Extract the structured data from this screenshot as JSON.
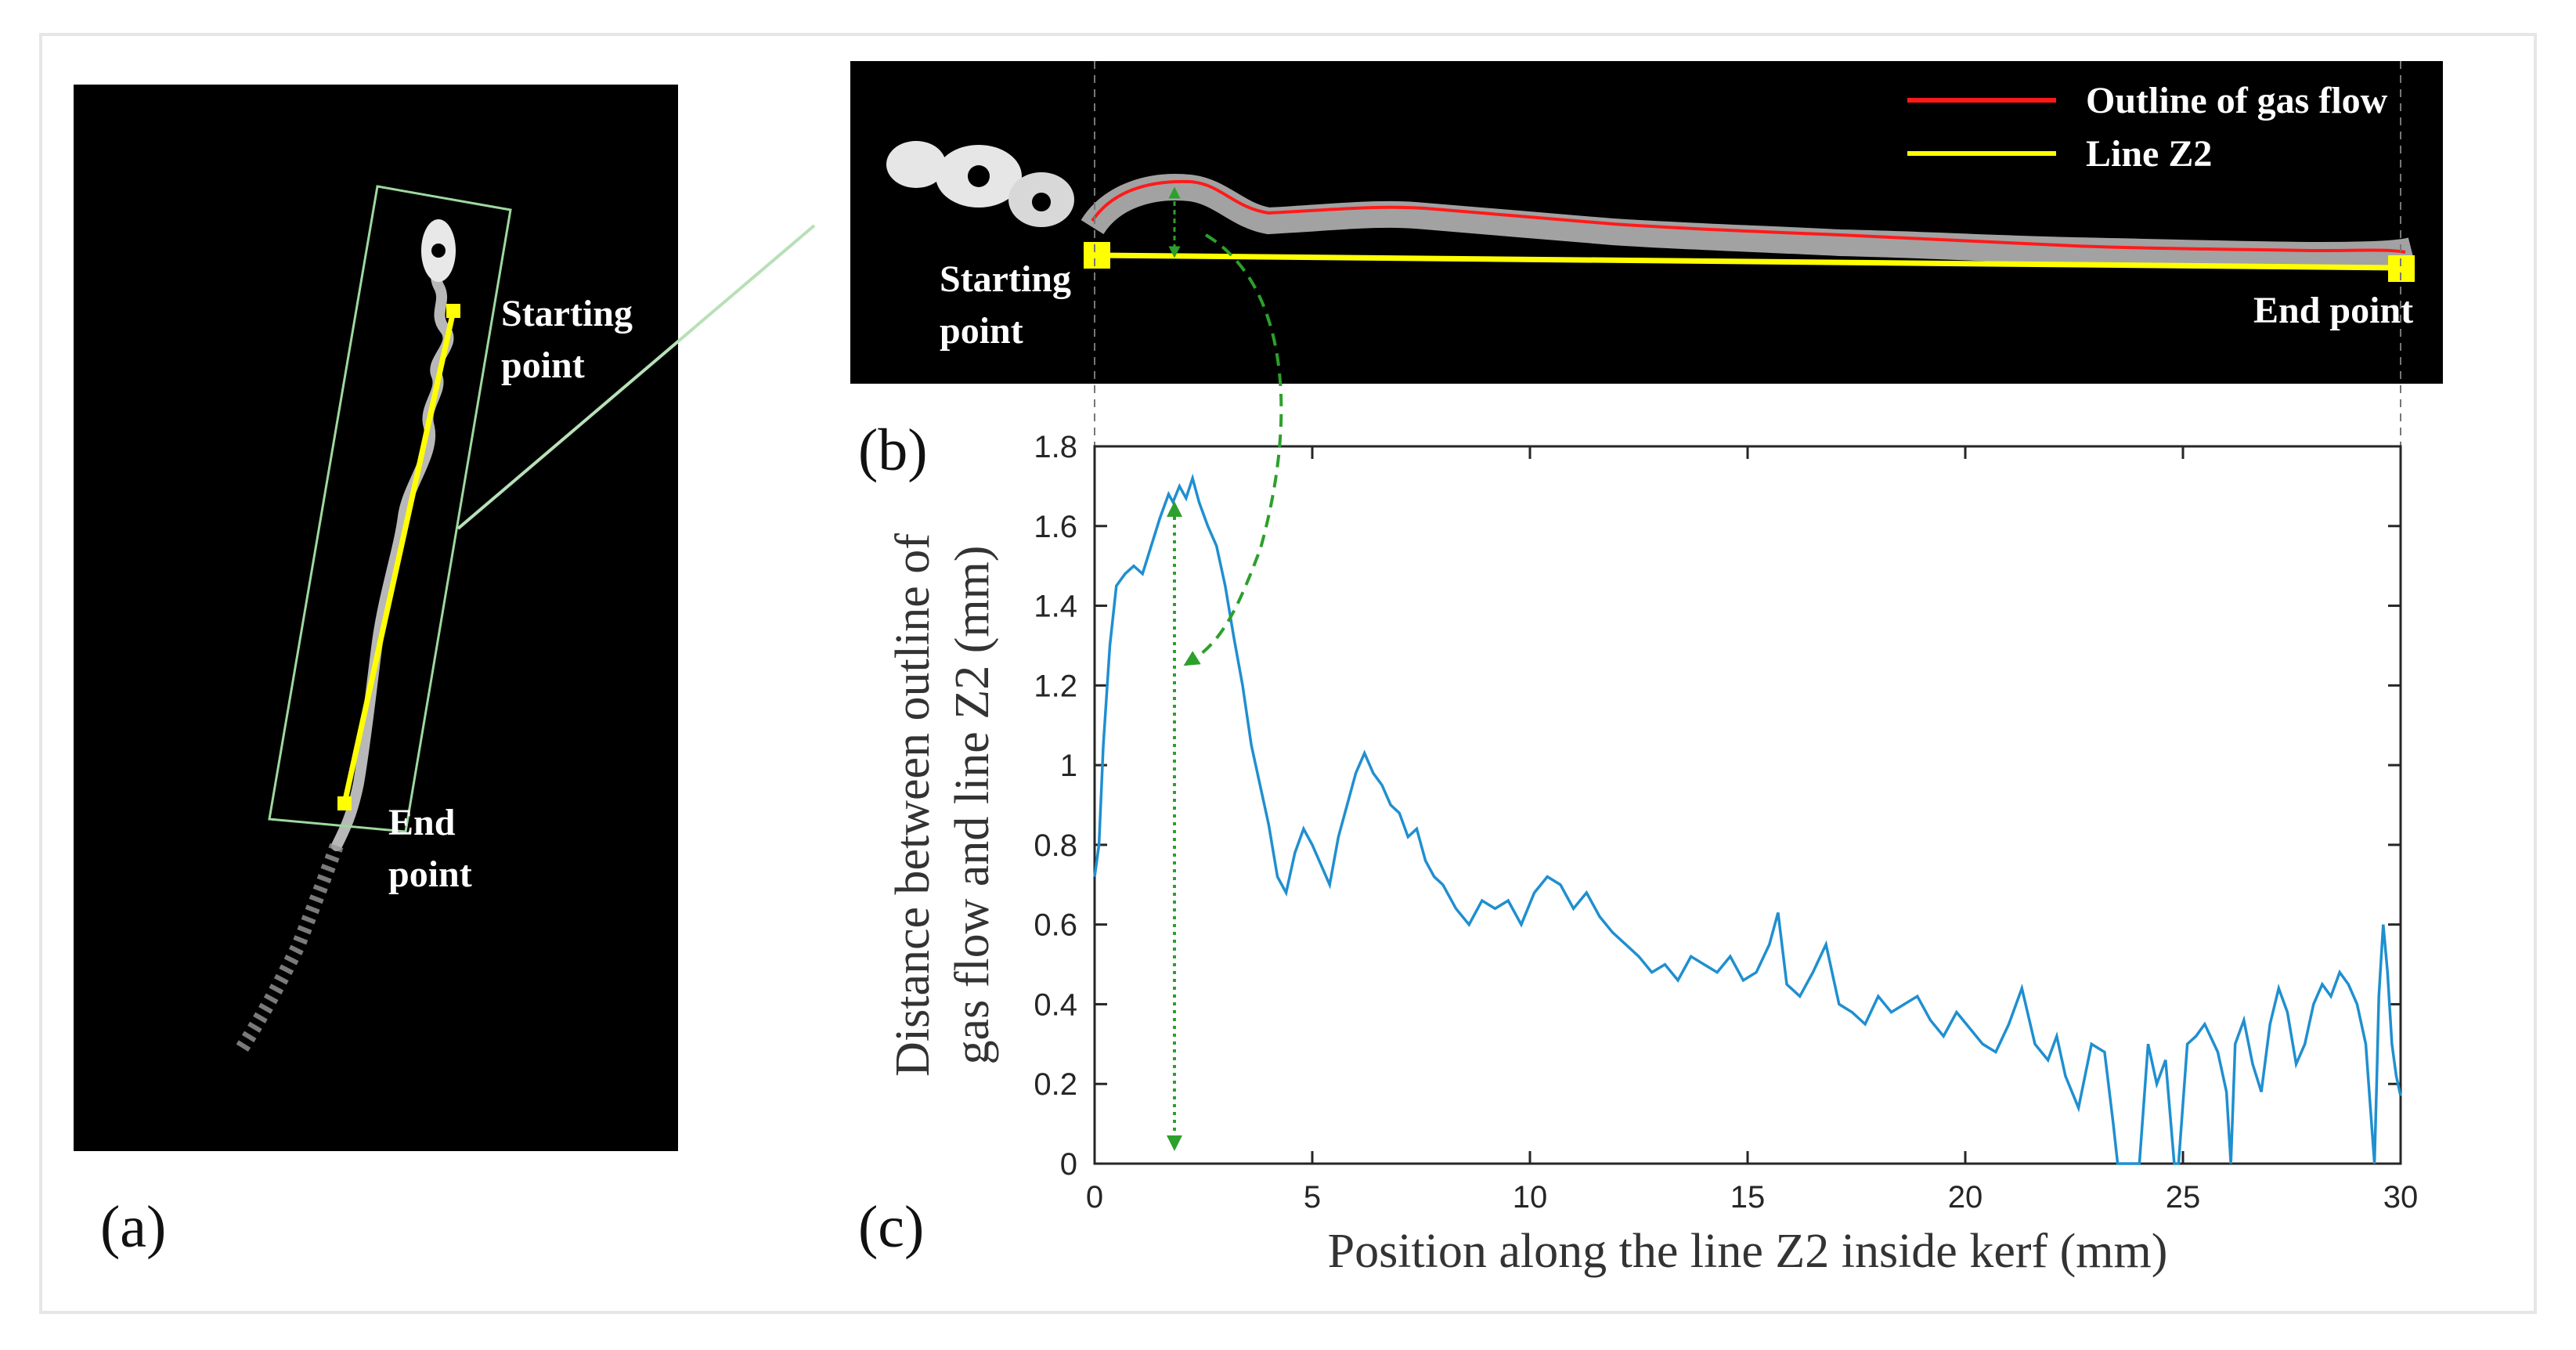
{
  "labels": {
    "panel_a": "(a)",
    "panel_b": "(b)",
    "panel_c": "(c)"
  },
  "panel_a": {
    "start_label_1": "Starting",
    "start_label_2": "point",
    "end_label_1": "End",
    "end_label_2": "point"
  },
  "panel_b": {
    "legend": [
      {
        "label": "Outline of gas flow",
        "color": "#ff1a1a"
      },
      {
        "label": "Line Z2",
        "color": "#ffff00"
      }
    ],
    "start_label_1": "Starting",
    "start_label_2": "point",
    "end_label": "End point"
  },
  "colors": {
    "series": "#1f8fd0",
    "annotation": "#2ca02c",
    "line_z2": "#ffff00",
    "outline": "#ff1a1a"
  },
  "chart_data": {
    "type": "line",
    "xlabel": "Position along the line Z2 inside kerf (mm)",
    "ylabel_line1": "Distance between outline of",
    "ylabel_line2": "gas flow and line Z2 (mm)",
    "xlim": [
      0,
      30
    ],
    "ylim": [
      0,
      1.8
    ],
    "xticks": [
      0,
      5,
      10,
      15,
      20,
      25,
      30
    ],
    "yticks": [
      0,
      0.2,
      0.4,
      0.6,
      0.8,
      1,
      1.2,
      1.4,
      1.6,
      1.8
    ],
    "xtick_labels": [
      "0",
      "5",
      "10",
      "15",
      "20",
      "25",
      "30"
    ],
    "ytick_labels": [
      "0",
      "0.2",
      "0.4",
      "0.6",
      "0.8",
      "1",
      "1.2",
      "1.4",
      "1.6",
      "1.8"
    ],
    "series": [
      {
        "x": [
          0.0,
          0.1,
          0.2,
          0.35,
          0.5,
          0.7,
          0.9,
          1.1,
          1.3,
          1.5,
          1.7,
          1.8,
          1.95,
          2.1,
          2.25,
          2.4,
          2.6,
          2.8,
          3.0,
          3.2,
          3.4,
          3.6,
          3.8,
          4.0,
          4.2,
          4.4,
          4.6,
          4.8,
          5.0,
          5.2,
          5.4,
          5.6,
          5.8,
          6.0,
          6.2,
          6.4,
          6.6,
          6.8,
          7.0,
          7.2,
          7.4,
          7.6,
          7.8,
          8.0,
          8.3,
          8.6,
          8.9,
          9.2,
          9.5,
          9.8,
          10.1,
          10.4,
          10.7,
          11.0,
          11.3,
          11.6,
          11.9,
          12.2,
          12.5,
          12.8,
          13.1,
          13.4,
          13.7,
          14.0,
          14.3,
          14.6,
          14.9,
          15.2,
          15.5,
          15.7,
          15.9,
          16.2,
          16.5,
          16.8,
          17.1,
          17.4,
          17.7,
          18.0,
          18.3,
          18.6,
          18.9,
          19.2,
          19.5,
          19.8,
          20.1,
          20.4,
          20.7,
          21.0,
          21.3,
          21.6,
          21.9,
          22.1,
          22.3,
          22.6,
          22.9,
          23.2,
          23.4,
          23.5,
          23.7,
          23.9,
          24.0,
          24.2,
          24.4,
          24.6,
          24.8,
          24.9,
          25.1,
          25.3,
          25.5,
          25.8,
          26.0,
          26.1,
          26.2,
          26.4,
          26.6,
          26.8,
          27.0,
          27.2,
          27.4,
          27.6,
          27.8,
          28.0,
          28.2,
          28.4,
          28.6,
          28.8,
          29.0,
          29.2,
          29.4,
          29.45,
          29.5,
          29.6,
          29.7,
          29.8,
          29.9,
          30.0
        ],
        "y": [
          0.72,
          0.8,
          1.05,
          1.3,
          1.45,
          1.48,
          1.5,
          1.48,
          1.55,
          1.62,
          1.68,
          1.66,
          1.7,
          1.67,
          1.72,
          1.66,
          1.6,
          1.55,
          1.45,
          1.32,
          1.2,
          1.05,
          0.95,
          0.85,
          0.72,
          0.68,
          0.78,
          0.84,
          0.8,
          0.75,
          0.7,
          0.82,
          0.9,
          0.98,
          1.03,
          0.98,
          0.95,
          0.9,
          0.88,
          0.82,
          0.84,
          0.76,
          0.72,
          0.7,
          0.64,
          0.6,
          0.66,
          0.64,
          0.66,
          0.6,
          0.68,
          0.72,
          0.7,
          0.64,
          0.68,
          0.62,
          0.58,
          0.55,
          0.52,
          0.48,
          0.5,
          0.46,
          0.52,
          0.5,
          0.48,
          0.52,
          0.46,
          0.48,
          0.55,
          0.63,
          0.45,
          0.42,
          0.48,
          0.55,
          0.4,
          0.38,
          0.35,
          0.42,
          0.38,
          0.4,
          0.42,
          0.36,
          0.32,
          0.38,
          0.34,
          0.3,
          0.28,
          0.35,
          0.44,
          0.3,
          0.26,
          0.32,
          0.22,
          0.14,
          0.3,
          0.28,
          0.1,
          0.0,
          0.0,
          0.0,
          0.0,
          0.3,
          0.2,
          0.26,
          0.0,
          0.0,
          0.3,
          0.32,
          0.35,
          0.28,
          0.18,
          0.0,
          0.3,
          0.36,
          0.25,
          0.18,
          0.35,
          0.44,
          0.38,
          0.25,
          0.3,
          0.4,
          0.45,
          0.42,
          0.48,
          0.45,
          0.4,
          0.3,
          0.0,
          0.2,
          0.42,
          0.6,
          0.48,
          0.3,
          0.22,
          0.17
        ]
      }
    ]
  }
}
